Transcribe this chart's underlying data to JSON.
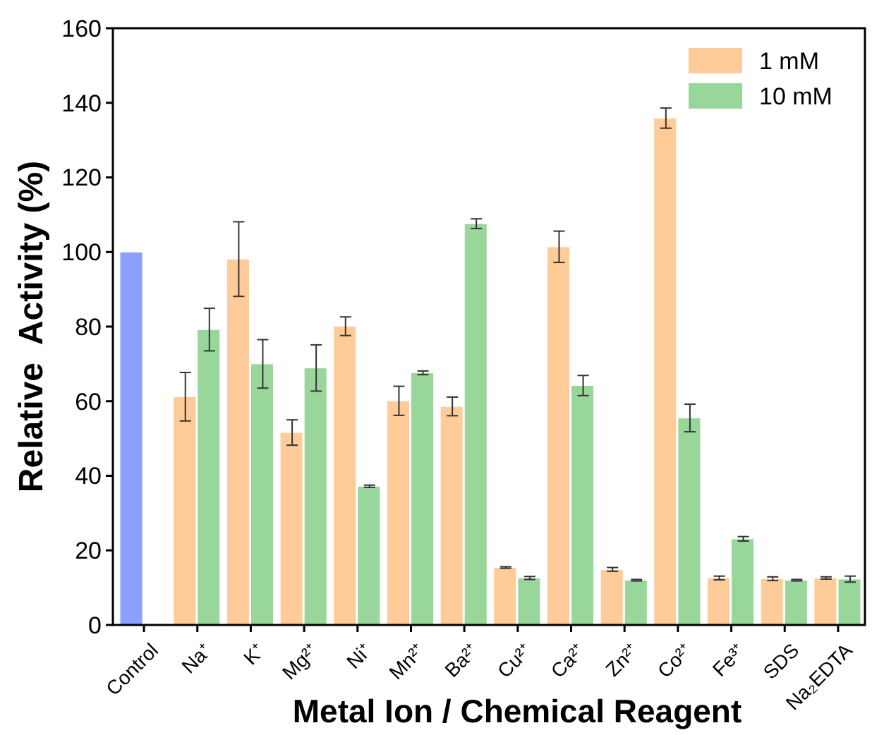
{
  "chart_data": {
    "type": "bar",
    "xlabel": "Metal Ion / Chemical Reagent",
    "ylabel": "Relative  Activity (%)",
    "categories": [
      "Control",
      "Na⁺",
      "K⁺",
      "Mg²⁺",
      "Ni⁺",
      "Mn²⁺",
      "Ba²⁺",
      "Cu²⁺",
      "Ca²⁺",
      "Zn²⁺",
      "Co²⁺",
      "Fe³⁺",
      "SDS",
      "Na₂EDTA"
    ],
    "series": [
      {
        "name": "1 mM",
        "color": "#ffcc99",
        "colors": [
          "#8c9eff",
          "#ffcc99",
          "#ffcc99",
          "#ffcc99",
          "#ffcc99",
          "#ffcc99",
          "#ffcc99",
          "#ffcc99",
          "#ffcc99",
          "#ffcc99",
          "#ffcc99",
          "#ffcc99",
          "#ffcc99",
          "#ffcc99"
        ],
        "values": [
          100,
          61.2,
          98.1,
          51.6,
          80.1,
          60.1,
          58.6,
          15.4,
          101.4,
          14.9,
          135.9,
          12.6,
          12.4,
          12.6
        ],
        "errors": [
          null,
          6.5,
          10,
          3.4,
          2.5,
          3.9,
          2.5,
          0.2,
          4.2,
          0.5,
          2.7,
          0.5,
          0.5,
          0.3
        ]
      },
      {
        "name": "10 mM",
        "color": "#99d699",
        "values": [
          null,
          79.2,
          70,
          68.9,
          37.2,
          67.6,
          107.6,
          12.6,
          64.2,
          12,
          55.5,
          23.1,
          12,
          12.3
        ],
        "errors": [
          null,
          5.7,
          6.5,
          6.2,
          0.3,
          0.5,
          1.3,
          0.4,
          2.7,
          0.2,
          3.7,
          0.6,
          0.2,
          0.8
        ]
      }
    ],
    "ylim": [
      0,
      160
    ],
    "yticks": [
      0,
      20,
      40,
      60,
      80,
      100,
      120,
      140,
      160
    ],
    "legend": "top right",
    "grid": false
  }
}
